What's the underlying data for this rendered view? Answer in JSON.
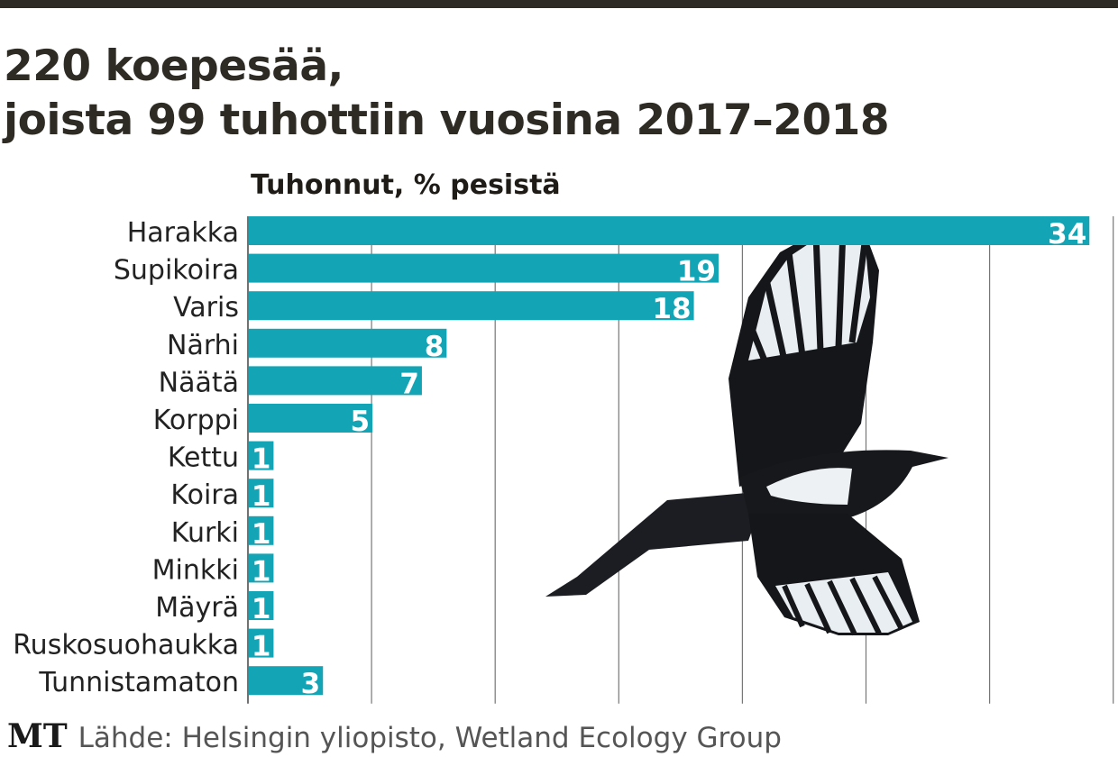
{
  "title_line1": "220 koepesää,",
  "title_line2": "joista 99 tuhottiin vuosina 2017–2018",
  "chart_data": {
    "type": "bar",
    "orientation": "horizontal",
    "title": "220 koepesää, joista 99 tuhottiin vuosina 2017–2018",
    "xlabel": "Tuhonnut, % pesistä",
    "ylabel": "",
    "categories": [
      "Harakka",
      "Supikoira",
      "Varis",
      "Närhi",
      "Näätä",
      "Korppi",
      "Kettu",
      "Koira",
      "Kurki",
      "Minkki",
      "Mäyrä",
      "Ruskosuohaukka",
      "Tunnistamaton"
    ],
    "values": [
      34,
      19,
      18,
      8,
      7,
      5,
      1,
      1,
      1,
      1,
      1,
      1,
      3
    ],
    "xlim": [
      0,
      35
    ],
    "grid": true,
    "bar_color": "#13a5b5"
  },
  "logo": "MT",
  "source": "Lähde: Helsingin yliopisto, Wetland Ecology Group"
}
